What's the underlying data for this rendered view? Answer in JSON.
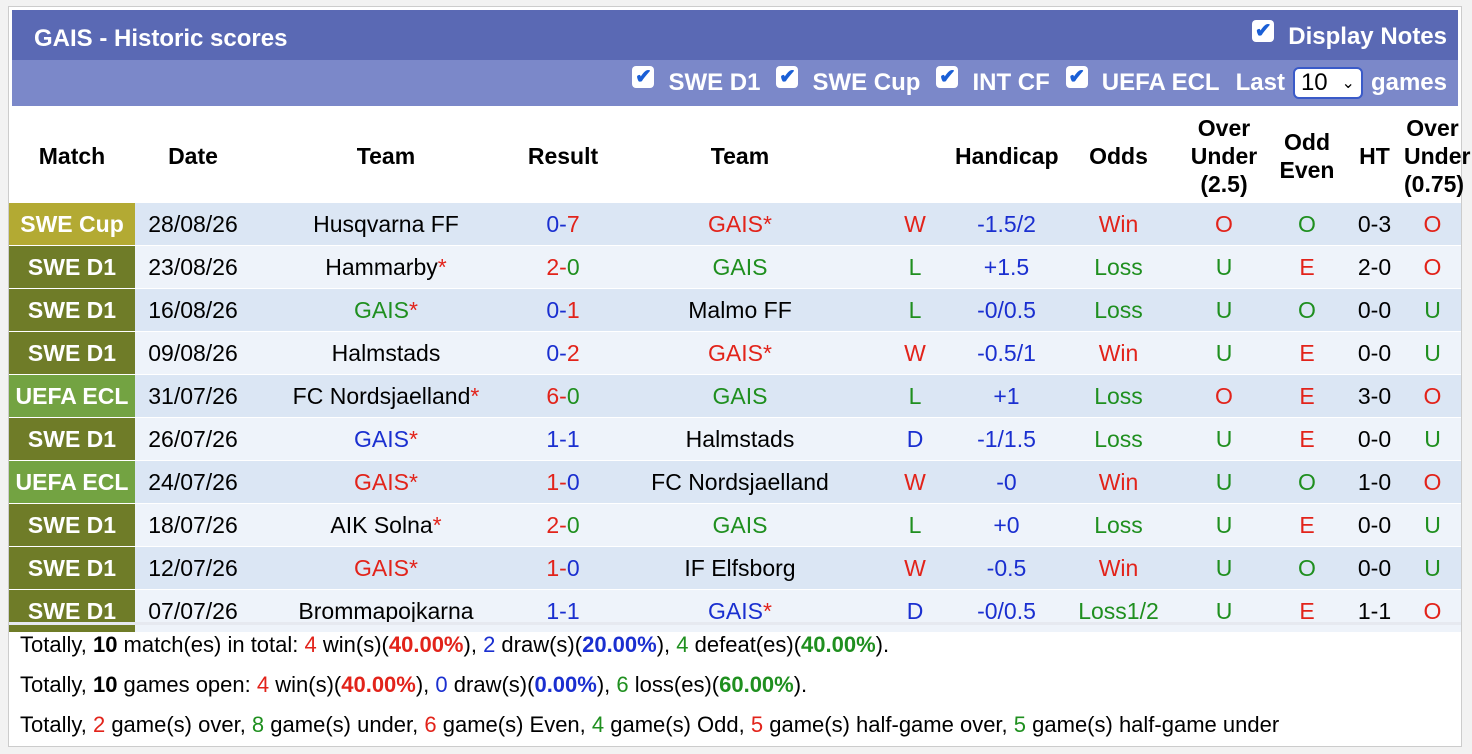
{
  "title": "GAIS - Historic scores",
  "display_notes": "Display Notes",
  "filters": [
    {
      "label": "SWE D1",
      "checked": true
    },
    {
      "label": "SWE Cup",
      "checked": true
    },
    {
      "label": "INT CF",
      "checked": true
    },
    {
      "label": "UEFA ECL",
      "checked": true
    }
  ],
  "last_label": "Last",
  "last_value": "10",
  "games_label": "games",
  "columns": {
    "match": "Match",
    "date": "Date",
    "team1": "Team",
    "result": "Result",
    "team2": "Team",
    "handicap": "Handicap",
    "odds": "Odds",
    "ou_a": "Over",
    "ou_b": "Under",
    "ou_c": "(2.5)",
    "oe_a": "Odd",
    "oe_b": "Even",
    "ht": "HT",
    "ou2_a": "Over",
    "ou2_b": "Under",
    "ou2_c": "(0.75)"
  },
  "colors": {
    "SWE Cup": "#b3aa33",
    "SWE D1": "#6f7c28",
    "UEFA ECL": "#73a342",
    "red": "#e2231a",
    "green": "#1f8f1f",
    "blue": "#1a2fd0",
    "black": "#000000"
  },
  "matches": [
    {
      "comp": "SWE Cup",
      "date": "28/08/26",
      "team1": "Husqvarna FF",
      "team1_star": "",
      "team1_color": "black",
      "score_home": "0",
      "score_away": "7",
      "score_home_color": "blue",
      "score_away_color": "red",
      "team2": "GAIS",
      "team2_star": "*",
      "team2_color": "red",
      "wl": "W",
      "wl_color": "red",
      "handicap": "-1.5/2",
      "handicap_color": "blue",
      "odds": "Win",
      "odds_color": "red",
      "ou": "O",
      "ou_color": "red",
      "oe": "O",
      "oe_color": "green",
      "ht": "0-3",
      "ou2": "O",
      "ou2_color": "red"
    },
    {
      "comp": "SWE D1",
      "date": "23/08/26",
      "team1": "Hammarby",
      "team1_star": "*",
      "team1_color": "black",
      "score_home": "2",
      "score_away": "0",
      "score_home_color": "red",
      "score_away_color": "green",
      "team2": "GAIS",
      "team2_star": "",
      "team2_color": "green",
      "wl": "L",
      "wl_color": "green",
      "handicap": "+1.5",
      "handicap_color": "blue",
      "odds": "Loss",
      "odds_color": "green",
      "ou": "U",
      "ou_color": "green",
      "oe": "E",
      "oe_color": "red",
      "ht": "2-0",
      "ou2": "O",
      "ou2_color": "red"
    },
    {
      "comp": "SWE D1",
      "date": "16/08/26",
      "team1": "GAIS",
      "team1_star": "*",
      "team1_color": "green",
      "score_home": "0",
      "score_away": "1",
      "score_home_color": "blue",
      "score_away_color": "red",
      "team2": "Malmo FF",
      "team2_star": "",
      "team2_color": "black",
      "wl": "L",
      "wl_color": "green",
      "handicap": "-0/0.5",
      "handicap_color": "blue",
      "odds": "Loss",
      "odds_color": "green",
      "ou": "U",
      "ou_color": "green",
      "oe": "O",
      "oe_color": "green",
      "ht": "0-0",
      "ou2": "U",
      "ou2_color": "green"
    },
    {
      "comp": "SWE D1",
      "date": "09/08/26",
      "team1": "Halmstads",
      "team1_star": "",
      "team1_color": "black",
      "score_home": "0",
      "score_away": "2",
      "score_home_color": "blue",
      "score_away_color": "red",
      "team2": "GAIS",
      "team2_star": "*",
      "team2_color": "red",
      "wl": "W",
      "wl_color": "red",
      "handicap": "-0.5/1",
      "handicap_color": "blue",
      "odds": "Win",
      "odds_color": "red",
      "ou": "U",
      "ou_color": "green",
      "oe": "E",
      "oe_color": "red",
      "ht": "0-0",
      "ou2": "U",
      "ou2_color": "green"
    },
    {
      "comp": "UEFA ECL",
      "date": "31/07/26",
      "team1": "FC Nordsjaelland",
      "team1_star": "*",
      "team1_color": "black",
      "score_home": "6",
      "score_away": "0",
      "score_home_color": "red",
      "score_away_color": "green",
      "team2": "GAIS",
      "team2_star": "",
      "team2_color": "green",
      "wl": "L",
      "wl_color": "green",
      "handicap": "+1",
      "handicap_color": "blue",
      "odds": "Loss",
      "odds_color": "green",
      "ou": "O",
      "ou_color": "red",
      "oe": "E",
      "oe_color": "red",
      "ht": "3-0",
      "ou2": "O",
      "ou2_color": "red"
    },
    {
      "comp": "SWE D1",
      "date": "26/07/26",
      "team1": "GAIS",
      "team1_star": "*",
      "team1_color": "blue",
      "score_home": "1",
      "score_away": "1",
      "score_home_color": "blue",
      "score_away_color": "blue",
      "team2": "Halmstads",
      "team2_star": "",
      "team2_color": "black",
      "wl": "D",
      "wl_color": "blue",
      "handicap": "-1/1.5",
      "handicap_color": "blue",
      "odds": "Loss",
      "odds_color": "green",
      "ou": "U",
      "ou_color": "green",
      "oe": "E",
      "oe_color": "red",
      "ht": "0-0",
      "ou2": "U",
      "ou2_color": "green"
    },
    {
      "comp": "UEFA ECL",
      "date": "24/07/26",
      "team1": "GAIS",
      "team1_star": "*",
      "team1_color": "red",
      "score_home": "1",
      "score_away": "0",
      "score_home_color": "red",
      "score_away_color": "blue",
      "team2": "FC Nordsjaelland",
      "team2_star": "",
      "team2_color": "black",
      "wl": "W",
      "wl_color": "red",
      "handicap": "-0",
      "handicap_color": "blue",
      "odds": "Win",
      "odds_color": "red",
      "ou": "U",
      "ou_color": "green",
      "oe": "O",
      "oe_color": "green",
      "ht": "1-0",
      "ou2": "O",
      "ou2_color": "red"
    },
    {
      "comp": "SWE D1",
      "date": "18/07/26",
      "team1": "AIK Solna",
      "team1_star": "*",
      "team1_color": "black",
      "score_home": "2",
      "score_away": "0",
      "score_home_color": "red",
      "score_away_color": "green",
      "team2": "GAIS",
      "team2_star": "",
      "team2_color": "green",
      "wl": "L",
      "wl_color": "green",
      "handicap": "+0",
      "handicap_color": "blue",
      "odds": "Loss",
      "odds_color": "green",
      "ou": "U",
      "ou_color": "green",
      "oe": "E",
      "oe_color": "red",
      "ht": "0-0",
      "ou2": "U",
      "ou2_color": "green"
    },
    {
      "comp": "SWE D1",
      "date": "12/07/26",
      "team1": "GAIS",
      "team1_star": "*",
      "team1_color": "red",
      "score_home": "1",
      "score_away": "0",
      "score_home_color": "red",
      "score_away_color": "blue",
      "team2": "IF Elfsborg",
      "team2_star": "",
      "team2_color": "black",
      "wl": "W",
      "wl_color": "red",
      "handicap": "-0.5",
      "handicap_color": "blue",
      "odds": "Win",
      "odds_color": "red",
      "ou": "U",
      "ou_color": "green",
      "oe": "O",
      "oe_color": "green",
      "ht": "0-0",
      "ou2": "U",
      "ou2_color": "green"
    },
    {
      "comp": "SWE D1",
      "date": "07/07/26",
      "team1": "Brommapojkarna",
      "team1_star": "",
      "team1_color": "black",
      "score_home": "1",
      "score_away": "1",
      "score_home_color": "blue",
      "score_away_color": "blue",
      "team2": "GAIS",
      "team2_star": "*",
      "team2_color": "blue",
      "wl": "D",
      "wl_color": "blue",
      "handicap": "-0/0.5",
      "handicap_color": "blue",
      "odds": "Loss1/2",
      "odds_color": "green",
      "ou": "U",
      "ou_color": "green",
      "oe": "E",
      "oe_color": "red",
      "ht": "1-1",
      "ou2": "O",
      "ou2_color": "red"
    }
  ],
  "summary": {
    "line1": [
      {
        "t": "Totally, ",
        "c": ""
      },
      {
        "t": "10",
        "c": "bold"
      },
      {
        "t": " match(es) in total: ",
        "c": ""
      },
      {
        "t": "4",
        "c": "r"
      },
      {
        "t": " win(s)(",
        "c": ""
      },
      {
        "t": "40.00%",
        "c": "r bold"
      },
      {
        "t": "), ",
        "c": ""
      },
      {
        "t": "2",
        "c": "b"
      },
      {
        "t": " draw(s)(",
        "c": ""
      },
      {
        "t": "20.00%",
        "c": "b bold"
      },
      {
        "t": "), ",
        "c": ""
      },
      {
        "t": "4",
        "c": "g"
      },
      {
        "t": " defeat(es)(",
        "c": ""
      },
      {
        "t": "40.00%",
        "c": "g bold"
      },
      {
        "t": ").",
        "c": ""
      }
    ],
    "line2": [
      {
        "t": "Totally, ",
        "c": ""
      },
      {
        "t": "10",
        "c": "bold"
      },
      {
        "t": " games open: ",
        "c": ""
      },
      {
        "t": "4",
        "c": "r"
      },
      {
        "t": " win(s)(",
        "c": ""
      },
      {
        "t": "40.00%",
        "c": "r bold"
      },
      {
        "t": "), ",
        "c": ""
      },
      {
        "t": "0",
        "c": "b"
      },
      {
        "t": " draw(s)(",
        "c": ""
      },
      {
        "t": "0.00%",
        "c": "b bold"
      },
      {
        "t": "), ",
        "c": ""
      },
      {
        "t": "6",
        "c": "g"
      },
      {
        "t": " loss(es)(",
        "c": ""
      },
      {
        "t": "60.00%",
        "c": "g bold"
      },
      {
        "t": ").",
        "c": ""
      }
    ],
    "line3": [
      {
        "t": "Totally, ",
        "c": ""
      },
      {
        "t": "2",
        "c": "r"
      },
      {
        "t": " game(s) over, ",
        "c": ""
      },
      {
        "t": "8",
        "c": "g"
      },
      {
        "t": " game(s) under, ",
        "c": ""
      },
      {
        "t": "6",
        "c": "r"
      },
      {
        "t": " game(s) Even, ",
        "c": ""
      },
      {
        "t": "4",
        "c": "g"
      },
      {
        "t": " game(s) Odd, ",
        "c": ""
      },
      {
        "t": "5",
        "c": "r"
      },
      {
        "t": " game(s) half-game over, ",
        "c": ""
      },
      {
        "t": "5",
        "c": "g"
      },
      {
        "t": " game(s) half-game under",
        "c": ""
      }
    ]
  }
}
